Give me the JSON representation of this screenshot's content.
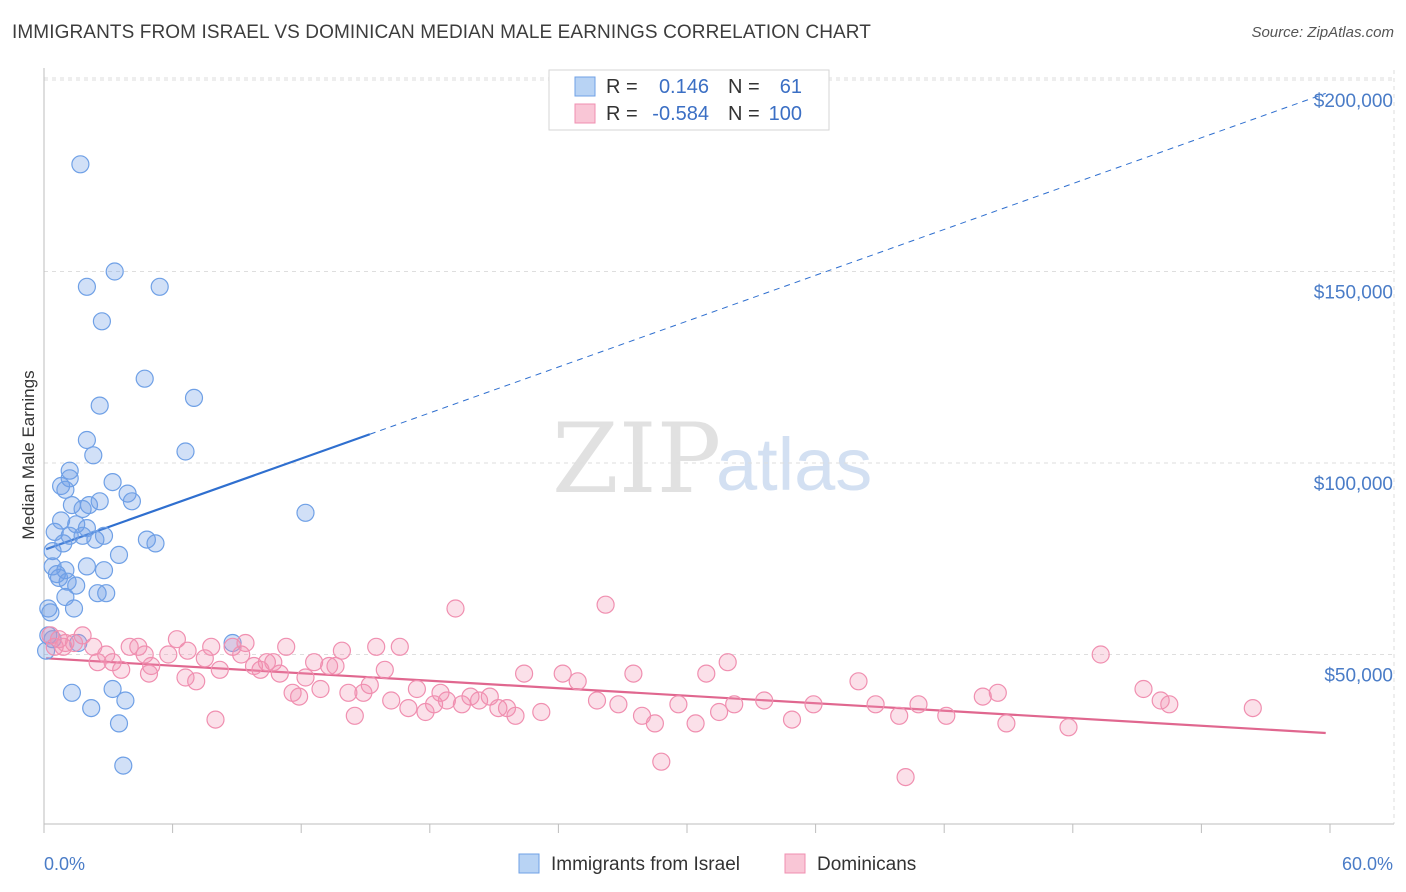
{
  "title": "IMMIGRANTS FROM ISRAEL VS DOMINICAN MEDIAN MALE EARNINGS CORRELATION CHART",
  "source": "Source: ZipAtlas.com",
  "watermark": {
    "zip": "ZIP",
    "atlas": "atlas"
  },
  "legend": {
    "rows": [
      {
        "r_label": "R =",
        "r_value": "0.146",
        "n_label": "N =",
        "n_value": "61"
      },
      {
        "r_label": "R =",
        "r_value": "-0.584",
        "n_label": "N =",
        "n_value": "100"
      }
    ]
  },
  "chart_data": {
    "type": "scatter",
    "title": "IMMIGRANTS FROM ISRAEL VS DOMINICAN MEDIAN MALE EARNINGS CORRELATION CHART",
    "xlabel": "",
    "ylabel": "Median Male Earnings",
    "xlim": [
      0,
      60
    ],
    "ylim": [
      0,
      210000
    ],
    "x_tick_labels": [
      "0.0%",
      "60.0%"
    ],
    "y_ticks": [
      {
        "value": 50000,
        "label": "$50,000"
      },
      {
        "value": 100000,
        "label": "$100,000"
      },
      {
        "value": 150000,
        "label": "$150,000"
      },
      {
        "value": 200000,
        "label": "$200,000"
      }
    ],
    "grid": true,
    "legend_position": "top-center",
    "series": [
      {
        "name": "Immigrants from Israel",
        "color": "#6fa0e6",
        "line_color": "#2f6fcf",
        "r": 0.146,
        "n": 61,
        "trend": {
          "x0": 0.1,
          "y0": 77500,
          "x1": 15.2,
          "y1": 107500,
          "x_dash_end": 59.8,
          "y_dash_end": 196500
        },
        "points": [
          [
            1.7,
            178000
          ],
          [
            2.0,
            146000
          ],
          [
            3.3,
            150000
          ],
          [
            5.4,
            146000
          ],
          [
            2.7,
            137000
          ],
          [
            4.7,
            122000
          ],
          [
            7.0,
            117000
          ],
          [
            2.6,
            115000
          ],
          [
            2.0,
            106000
          ],
          [
            2.3,
            102000
          ],
          [
            6.6,
            103000
          ],
          [
            1.2,
            98000
          ],
          [
            1.2,
            96000
          ],
          [
            3.2,
            95000
          ],
          [
            0.8,
            94000
          ],
          [
            1.0,
            93000
          ],
          [
            3.9,
            92000
          ],
          [
            4.1,
            90000
          ],
          [
            1.3,
            89000
          ],
          [
            2.1,
            89000
          ],
          [
            1.8,
            88000
          ],
          [
            2.6,
            90000
          ],
          [
            12.2,
            87000
          ],
          [
            0.8,
            85000
          ],
          [
            1.5,
            84000
          ],
          [
            2.0,
            83000
          ],
          [
            0.5,
            82000
          ],
          [
            1.2,
            81000
          ],
          [
            2.4,
            80000
          ],
          [
            2.8,
            81000
          ],
          [
            4.8,
            80000
          ],
          [
            5.2,
            79000
          ],
          [
            0.9,
            79000
          ],
          [
            0.4,
            77000
          ],
          [
            3.5,
            76000
          ],
          [
            0.4,
            73000
          ],
          [
            1.0,
            72000
          ],
          [
            2.0,
            73000
          ],
          [
            2.8,
            72000
          ],
          [
            0.7,
            70000
          ],
          [
            1.1,
            69000
          ],
          [
            1.5,
            68000
          ],
          [
            2.5,
            66000
          ],
          [
            2.9,
            66000
          ],
          [
            1.0,
            65000
          ],
          [
            1.4,
            62000
          ],
          [
            0.2,
            62000
          ],
          [
            0.3,
            61000
          ],
          [
            0.2,
            55000
          ],
          [
            0.4,
            54000
          ],
          [
            1.6,
            53000
          ],
          [
            0.1,
            51000
          ],
          [
            8.8,
            53000
          ],
          [
            1.3,
            40000
          ],
          [
            3.2,
            41000
          ],
          [
            3.8,
            38000
          ],
          [
            2.2,
            36000
          ],
          [
            3.5,
            32000
          ],
          [
            3.7,
            21000
          ],
          [
            0.6,
            71000
          ],
          [
            1.8,
            81000
          ]
        ]
      },
      {
        "name": "Dominicans",
        "color": "#f08fb0",
        "line_color": "#e0678f",
        "r": -0.584,
        "n": 100,
        "trend": {
          "x0": 0.1,
          "y0": 49000,
          "x1": 59.8,
          "y1": 29500
        },
        "points": [
          [
            0.3,
            55000
          ],
          [
            0.7,
            54000
          ],
          [
            1.0,
            53000
          ],
          [
            1.4,
            53000
          ],
          [
            0.5,
            52000
          ],
          [
            0.9,
            52000
          ],
          [
            1.8,
            55000
          ],
          [
            2.3,
            52000
          ],
          [
            2.9,
            50000
          ],
          [
            3.2,
            48000
          ],
          [
            2.5,
            48000
          ],
          [
            3.6,
            46000
          ],
          [
            4.0,
            52000
          ],
          [
            4.4,
            52000
          ],
          [
            4.7,
            50000
          ],
          [
            5.0,
            47000
          ],
          [
            4.9,
            45000
          ],
          [
            5.8,
            50000
          ],
          [
            6.2,
            54000
          ],
          [
            6.6,
            44000
          ],
          [
            6.7,
            51000
          ],
          [
            7.1,
            43000
          ],
          [
            7.5,
            49000
          ],
          [
            7.8,
            52000
          ],
          [
            8.0,
            33000
          ],
          [
            8.2,
            46000
          ],
          [
            8.8,
            52000
          ],
          [
            9.2,
            50000
          ],
          [
            9.4,
            53000
          ],
          [
            9.8,
            47000
          ],
          [
            10.1,
            46000
          ],
          [
            10.4,
            48000
          ],
          [
            10.7,
            48000
          ],
          [
            11.0,
            45000
          ],
          [
            11.3,
            52000
          ],
          [
            11.6,
            40000
          ],
          [
            11.9,
            39000
          ],
          [
            12.2,
            44000
          ],
          [
            12.6,
            48000
          ],
          [
            12.9,
            41000
          ],
          [
            13.3,
            47000
          ],
          [
            13.6,
            47000
          ],
          [
            13.9,
            51000
          ],
          [
            14.2,
            40000
          ],
          [
            14.5,
            34000
          ],
          [
            14.9,
            40000
          ],
          [
            15.2,
            42000
          ],
          [
            15.5,
            52000
          ],
          [
            15.9,
            46000
          ],
          [
            16.2,
            38000
          ],
          [
            16.6,
            52000
          ],
          [
            17.0,
            36000
          ],
          [
            17.4,
            41000
          ],
          [
            17.8,
            35000
          ],
          [
            18.2,
            37000
          ],
          [
            18.5,
            40000
          ],
          [
            18.8,
            38000
          ],
          [
            19.2,
            62000
          ],
          [
            19.5,
            37000
          ],
          [
            19.9,
            39000
          ],
          [
            20.3,
            38000
          ],
          [
            20.8,
            39000
          ],
          [
            21.2,
            36000
          ],
          [
            21.6,
            36000
          ],
          [
            22.0,
            34000
          ],
          [
            22.4,
            45000
          ],
          [
            23.2,
            35000
          ],
          [
            24.2,
            45000
          ],
          [
            24.9,
            43000
          ],
          [
            25.8,
            38000
          ],
          [
            26.2,
            63000
          ],
          [
            26.8,
            37000
          ],
          [
            27.5,
            45000
          ],
          [
            27.9,
            34000
          ],
          [
            28.5,
            32000
          ],
          [
            28.8,
            22000
          ],
          [
            29.6,
            37000
          ],
          [
            30.4,
            32000
          ],
          [
            30.9,
            45000
          ],
          [
            31.5,
            35000
          ],
          [
            31.9,
            48000
          ],
          [
            32.2,
            37000
          ],
          [
            33.6,
            38000
          ],
          [
            34.9,
            33000
          ],
          [
            35.9,
            37000
          ],
          [
            38.0,
            43000
          ],
          [
            38.8,
            37000
          ],
          [
            39.9,
            34000
          ],
          [
            40.8,
            37000
          ],
          [
            42.1,
            34000
          ],
          [
            43.8,
            39000
          ],
          [
            44.5,
            40000
          ],
          [
            44.9,
            32000
          ],
          [
            47.8,
            31000
          ],
          [
            49.3,
            50000
          ],
          [
            51.3,
            41000
          ],
          [
            52.1,
            38000
          ],
          [
            52.5,
            37000
          ],
          [
            56.4,
            36000
          ],
          [
            40.2,
            18000
          ]
        ]
      }
    ]
  }
}
